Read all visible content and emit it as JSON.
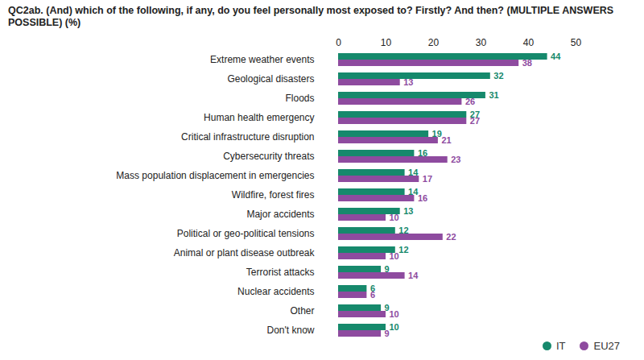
{
  "chart_data": {
    "type": "bar",
    "orientation": "horizontal",
    "title": "QC2ab. (And) which of the following, if any, do you feel personally most exposed to? Firstly? And then? (MULTIPLE ANSWERS POSSIBLE) (%)",
    "categories": [
      "Extreme weather events",
      "Geological disasters",
      "Floods",
      "Human health emergency",
      "Critical infrastructure disruption",
      "Cybersecurity threats",
      "Mass population displacement in emergencies",
      "Wildfire, forest fires",
      "Major accidents",
      "Political or geo-political tensions",
      "Animal or plant disease outbreak",
      "Terrorist attacks",
      "Nuclear accidents",
      "Other",
      "Don't know"
    ],
    "series": [
      {
        "name": "IT",
        "color": "#16896c",
        "values": [
          44,
          32,
          31,
          27,
          19,
          16,
          14,
          14,
          13,
          12,
          12,
          9,
          6,
          9,
          10
        ]
      },
      {
        "name": "EU27",
        "color": "#8e4b9f",
        "values": [
          38,
          13,
          26,
          27,
          21,
          23,
          17,
          16,
          10,
          22,
          10,
          14,
          6,
          10,
          9
        ]
      }
    ],
    "xlim": [
      0,
      50
    ],
    "xticks": [
      0,
      10,
      20,
      30,
      40,
      50
    ],
    "data_labels": true,
    "legend": "bottom-right",
    "grid": false
  }
}
